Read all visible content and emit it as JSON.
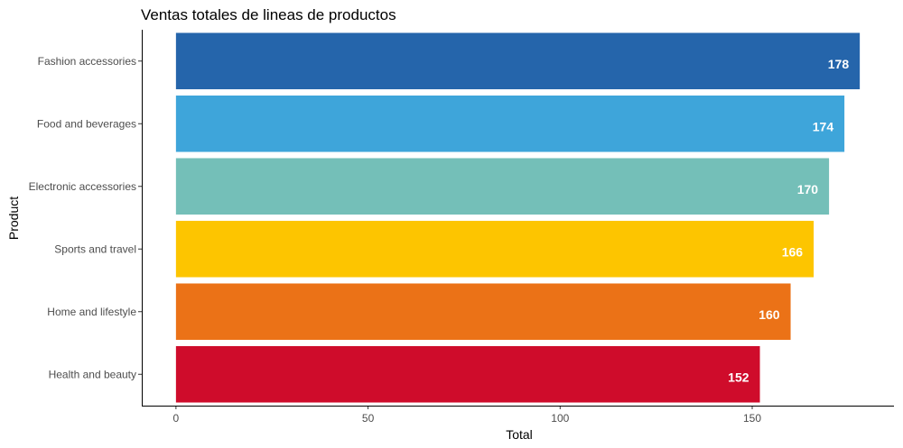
{
  "chart_data": {
    "type": "bar",
    "orientation": "horizontal",
    "title": "Ventas totales de lineas de productos",
    "xlabel": "Total",
    "ylabel": "Product",
    "categories": [
      "Fashion accessories",
      "Food and beverages",
      "Electronic accessories",
      "Sports and travel",
      "Home and lifestyle",
      "Health and beauty"
    ],
    "values": [
      178,
      174,
      170,
      166,
      160,
      152
    ],
    "colors": [
      "#2565ab",
      "#3ea5da",
      "#74bfb8",
      "#fdc500",
      "#eb7217",
      "#cf0c2b"
    ],
    "xlim": [
      -8.9,
      186.9
    ],
    "xticks": [
      0,
      50,
      100,
      150
    ],
    "grid": false,
    "legend": "none"
  }
}
